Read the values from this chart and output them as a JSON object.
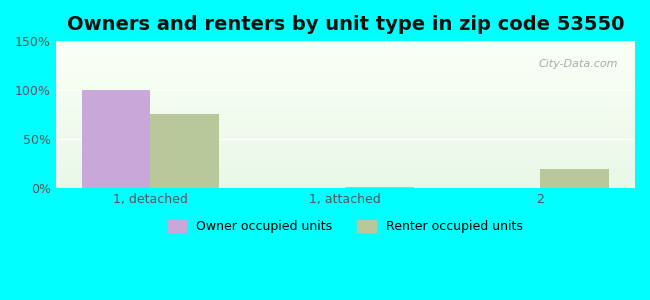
{
  "title": "Owners and renters by unit type in zip code 53550",
  "categories": [
    "1, detached",
    "1, attached",
    "2"
  ],
  "owner_values": [
    100,
    0,
    0
  ],
  "renter_values": [
    76,
    2,
    20
  ],
  "owner_color": "#c8a8d8",
  "renter_color": "#b8c89a",
  "ylim": [
    0,
    150
  ],
  "yticks": [
    0,
    50,
    100,
    150
  ],
  "ytick_labels": [
    "0%",
    "50%",
    "100%",
    "150%"
  ],
  "bar_width": 0.35,
  "background_top": "#e8f5e8",
  "background_bottom": "#f0fff0",
  "outer_bg": "#00ffff",
  "title_fontsize": 14,
  "legend_labels": [
    "Owner occupied units",
    "Renter occupied units"
  ],
  "watermark": "City-Data.com"
}
